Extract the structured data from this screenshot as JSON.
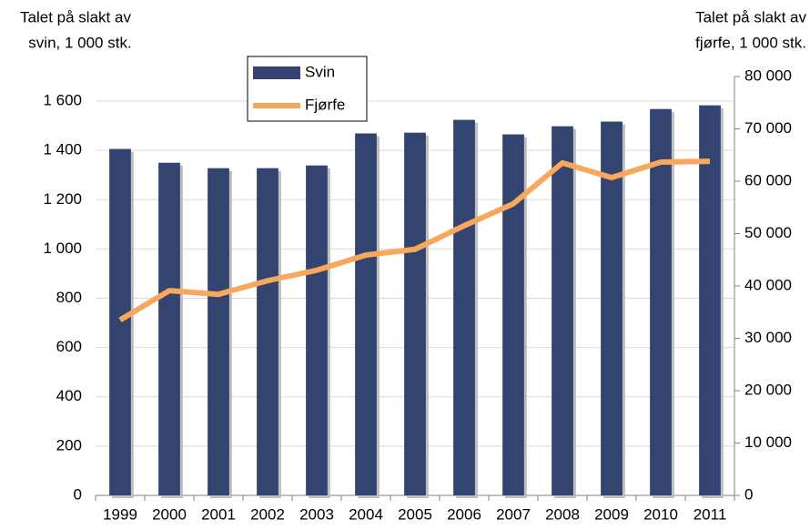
{
  "chart_data": {
    "type": "bar_line",
    "y_label": [
      "Talet på slakt av",
      "svin, 1 000 stk."
    ],
    "y2_label": [
      "Talet på slakt av",
      "fjørfe, 1 000 stk."
    ],
    "categories": [
      "1999",
      "2000",
      "2001",
      "2002",
      "2003",
      "2004",
      "2005",
      "2006",
      "2007",
      "2008",
      "2009",
      "2010",
      "2011"
    ],
    "series": [
      {
        "name": "Svin",
        "type": "bar",
        "color": "#344470",
        "values": [
          1406,
          1350,
          1328,
          1328,
          1339,
          1469,
          1472,
          1524,
          1465,
          1498,
          1517,
          1568,
          1583
        ]
      },
      {
        "name": "Fjørfe",
        "type": "line",
        "axis": "y2",
        "color": "#f8a85c",
        "values": [
          33500,
          39100,
          38400,
          41000,
          43000,
          45900,
          47000,
          51500,
          55700,
          63500,
          60700,
          63650,
          63800
        ]
      }
    ],
    "ylim": [
      0,
      1700
    ],
    "yticks": [
      0,
      200,
      400,
      600,
      800,
      {
        "value": 1000,
        "label": "1 000"
      },
      {
        "value": 1200,
        "label": "1 200"
      },
      {
        "value": 1400,
        "label": "1 400"
      },
      {
        "value": 1600,
        "label": "1 600"
      }
    ],
    "y2lim": [
      0,
      80000
    ],
    "y2ticks": [
      0,
      {
        "value": 10000,
        "label": "10 000"
      },
      {
        "value": 20000,
        "label": "20 000"
      },
      {
        "value": 30000,
        "label": "30 000"
      },
      {
        "value": 40000,
        "label": "40 000"
      },
      {
        "value": 50000,
        "label": "50 000"
      },
      {
        "value": 60000,
        "label": "60 000"
      },
      {
        "value": 70000,
        "label": "70 000"
      },
      {
        "value": 80000,
        "label": "80 000"
      }
    ],
    "grid": true
  }
}
